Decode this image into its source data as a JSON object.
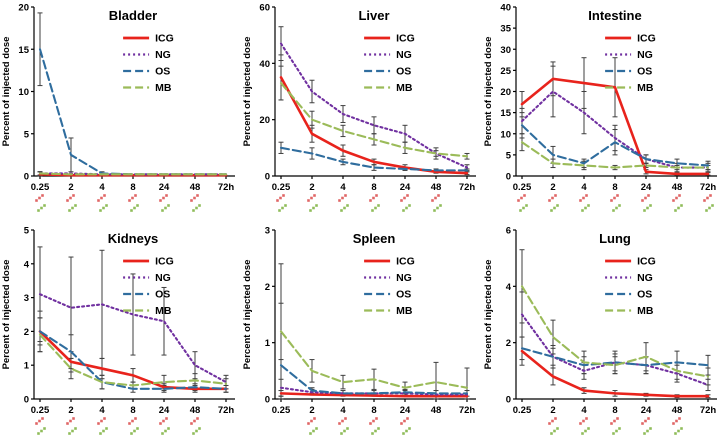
{
  "colors": {
    "icg": "#e8231c",
    "ng": "#7030a0",
    "os": "#2f6d9e",
    "mb": "#9bbb59",
    "error_bar": "#3f3f3f",
    "axis": "#000000",
    "mark_red": "#e06666",
    "mark_green": "#8fbc5a"
  },
  "chart_data": [
    {
      "type": "line",
      "title": "Bladder",
      "ylabel": "Percent of injected dose",
      "ylim": [
        0,
        20
      ],
      "yticks": [
        0,
        5,
        10,
        15,
        20
      ],
      "categories": [
        "0.25",
        "2",
        "4",
        "8",
        "24",
        "48",
        "72h"
      ],
      "legend_position": "upper-right-inside",
      "grid": false,
      "sig_marks": [
        0,
        1,
        2,
        3,
        4,
        5
      ],
      "series": [
        {
          "name": "ICG",
          "key": "icg",
          "dash": "solid",
          "values": [
            0.2,
            0.1,
            0.1,
            0.1,
            0.1,
            0.1,
            0.1
          ],
          "errors": [
            0.3,
            0,
            0,
            0,
            0,
            0,
            0
          ]
        },
        {
          "name": "NG",
          "key": "ng",
          "dash": "dotted",
          "values": [
            0.3,
            0.3,
            0.2,
            0.2,
            0.2,
            0.2,
            0.2
          ],
          "errors": [
            0.2,
            0,
            0,
            0,
            0,
            0,
            0
          ]
        },
        {
          "name": "OS",
          "key": "os",
          "dash": "dashed",
          "values": [
            15,
            2.5,
            0.3,
            0.2,
            0.2,
            0.2,
            0.2
          ],
          "errors": [
            4.3,
            2.0,
            0.2,
            0,
            0,
            0,
            0
          ]
        },
        {
          "name": "MB",
          "key": "mb",
          "dash": "dashed",
          "values": [
            0.3,
            0.2,
            0.2,
            0.2,
            0.2,
            0.2,
            0.2
          ],
          "errors": [
            0.2,
            0,
            0,
            0,
            0,
            0,
            0
          ]
        }
      ]
    },
    {
      "type": "line",
      "title": "Liver",
      "ylabel": "Percent of injected dose",
      "ylim": [
        0,
        60
      ],
      "yticks": [
        0,
        20,
        40,
        60
      ],
      "categories": [
        "0.25",
        "2",
        "4",
        "8",
        "24",
        "48",
        "72h"
      ],
      "legend_position": "upper-right-inside",
      "grid": false,
      "sig_marks": [
        0,
        1,
        2,
        3,
        4,
        5
      ],
      "series": [
        {
          "name": "ICG",
          "key": "icg",
          "dash": "solid",
          "values": [
            35,
            15,
            9,
            5,
            3,
            1.5,
            1
          ],
          "errors": [
            8,
            3,
            2,
            1,
            1,
            0.5,
            0.5
          ]
        },
        {
          "name": "NG",
          "key": "ng",
          "dash": "dotted",
          "values": [
            47,
            30,
            22,
            18,
            15,
            8,
            3
          ],
          "errors": [
            6,
            4,
            3,
            3,
            3,
            2,
            1
          ]
        },
        {
          "name": "OS",
          "key": "os",
          "dash": "dashed",
          "values": [
            10,
            8,
            5,
            3,
            2.5,
            2,
            2
          ],
          "errors": [
            2,
            2,
            1,
            1,
            0.5,
            0.5,
            0.5
          ]
        },
        {
          "name": "MB",
          "key": "mb",
          "dash": "dashed",
          "values": [
            33,
            20,
            16,
            13,
            10,
            8,
            7
          ],
          "errors": [
            6,
            3,
            2,
            2,
            2,
            1,
            1
          ]
        }
      ]
    },
    {
      "type": "line",
      "title": "Intestine",
      "ylabel": "Percent of injected dose",
      "ylim": [
        0,
        40
      ],
      "yticks": [
        0,
        5,
        10,
        15,
        20,
        25,
        30,
        35,
        40
      ],
      "categories": [
        "0.25",
        "2",
        "4",
        "8",
        "24",
        "48",
        "72h"
      ],
      "legend_position": "upper-right-inside",
      "grid": false,
      "sig_marks": [
        0,
        1,
        2,
        3,
        4,
        5,
        6
      ],
      "series": [
        {
          "name": "ICG",
          "key": "icg",
          "dash": "solid",
          "values": [
            17,
            23,
            22,
            21,
            1,
            0.5,
            0.5
          ],
          "errors": [
            3,
            4,
            6,
            7,
            0.5,
            0.3,
            0.3
          ]
        },
        {
          "name": "NG",
          "key": "ng",
          "dash": "dotted",
          "values": [
            13,
            20,
            15,
            9,
            4,
            2,
            2
          ],
          "errors": [
            3,
            6,
            5,
            3,
            1,
            1,
            1
          ]
        },
        {
          "name": "OS",
          "key": "os",
          "dash": "dashed",
          "values": [
            12,
            5,
            3,
            8,
            4,
            3,
            2.5
          ],
          "errors": [
            3,
            2,
            1,
            3,
            1,
            1,
            1
          ]
        },
        {
          "name": "MB",
          "key": "mb",
          "dash": "dashed",
          "values": [
            8,
            3,
            2.5,
            2,
            2.5,
            2,
            2
          ],
          "errors": [
            2,
            1,
            1,
            0.5,
            0.5,
            0.5,
            0.5
          ]
        }
      ]
    },
    {
      "type": "line",
      "title": "Kidneys",
      "ylabel": "Percent of injected dose",
      "ylim": [
        0,
        5
      ],
      "yticks": [
        0,
        1,
        2,
        3,
        4,
        5
      ],
      "categories": [
        "0.25",
        "2",
        "4",
        "8",
        "24",
        "48",
        "72h"
      ],
      "legend_position": "upper-right-inside",
      "grid": false,
      "sig_marks": [
        0,
        1,
        2,
        3,
        4,
        5
      ],
      "series": [
        {
          "name": "ICG",
          "key": "icg",
          "dash": "solid",
          "values": [
            2.0,
            1.1,
            0.9,
            0.7,
            0.35,
            0.3,
            0.3
          ],
          "errors": [
            0.4,
            0.3,
            0.3,
            0.2,
            0.1,
            0.1,
            0.1
          ]
        },
        {
          "name": "NG",
          "key": "ng",
          "dash": "dotted",
          "values": [
            3.1,
            2.7,
            2.8,
            2.5,
            2.3,
            1.0,
            0.5
          ],
          "errors": [
            1.4,
            1.5,
            1.6,
            1.2,
            1.0,
            0.4,
            0.2
          ]
        },
        {
          "name": "OS",
          "key": "os",
          "dash": "dashed",
          "values": [
            2.0,
            1.4,
            0.5,
            0.3,
            0.3,
            0.35,
            0.3
          ],
          "errors": [
            0.6,
            0.5,
            0.2,
            0.1,
            0.1,
            0.1,
            0.1
          ]
        },
        {
          "name": "MB",
          "key": "mb",
          "dash": "dashed",
          "values": [
            1.9,
            0.9,
            0.5,
            0.4,
            0.5,
            0.55,
            0.45
          ],
          "errors": [
            0.5,
            0.3,
            0.2,
            0.1,
            0.2,
            0.2,
            0.15
          ]
        }
      ]
    },
    {
      "type": "line",
      "title": "Spleen",
      "ylabel": "Percent of injected dose",
      "ylim": [
        0,
        3
      ],
      "yticks": [
        0,
        1,
        2,
        3
      ],
      "categories": [
        "0.25",
        "2",
        "4",
        "8",
        "24",
        "48",
        "72h"
      ],
      "legend_position": "upper-right-inside",
      "grid": false,
      "sig_marks": [
        1,
        2,
        3,
        4
      ],
      "series": [
        {
          "name": "ICG",
          "key": "icg",
          "dash": "solid",
          "values": [
            0.1,
            0.08,
            0.07,
            0.06,
            0.05,
            0.05,
            0.05
          ],
          "errors": [
            0.05,
            0,
            0,
            0,
            0,
            0,
            0
          ]
        },
        {
          "name": "NG",
          "key": "ng",
          "dash": "dotted",
          "values": [
            0.2,
            0.12,
            0.1,
            0.1,
            0.1,
            0.08,
            0.08
          ],
          "errors": [
            0.15,
            0.05,
            0,
            0,
            0.05,
            0,
            0
          ]
        },
        {
          "name": "OS",
          "key": "os",
          "dash": "dashed",
          "values": [
            0.6,
            0.15,
            0.1,
            0.1,
            0.12,
            0.1,
            0.1
          ],
          "errors": [
            1.8,
            0.05,
            0.05,
            0.05,
            0.05,
            0.05,
            0.05
          ]
        },
        {
          "name": "MB",
          "key": "mb",
          "dash": "dashed",
          "values": [
            1.2,
            0.5,
            0.3,
            0.35,
            0.2,
            0.3,
            0.2
          ],
          "errors": [
            0.5,
            0.2,
            0.12,
            0.18,
            0.1,
            0.35,
            0.35
          ]
        }
      ]
    },
    {
      "type": "line",
      "title": "Lung",
      "ylabel": "Percent of injected dose",
      "ylim": [
        0,
        6
      ],
      "yticks": [
        0,
        2,
        4,
        6
      ],
      "categories": [
        "0.25",
        "2",
        "4",
        "8",
        "24",
        "48",
        "72h"
      ],
      "legend_position": "upper-right-inside",
      "grid": false,
      "sig_marks": [
        1,
        2,
        3,
        4,
        5
      ],
      "series": [
        {
          "name": "ICG",
          "key": "icg",
          "dash": "solid",
          "values": [
            1.7,
            0.8,
            0.3,
            0.2,
            0.15,
            0.1,
            0.1
          ],
          "errors": [
            0.5,
            0.3,
            0.1,
            0.1,
            0.05,
            0.05,
            0.05
          ]
        },
        {
          "name": "NG",
          "key": "ng",
          "dash": "dotted",
          "values": [
            3.0,
            1.5,
            1.0,
            1.3,
            1.2,
            0.9,
            0.5
          ],
          "errors": [
            0.8,
            0.4,
            0.3,
            0.4,
            0.3,
            0.3,
            0.2
          ]
        },
        {
          "name": "OS",
          "key": "os",
          "dash": "dashed",
          "values": [
            1.8,
            1.5,
            1.2,
            1.3,
            1.2,
            1.3,
            1.2
          ],
          "errors": [
            0.4,
            0.3,
            0.3,
            0.3,
            0.3,
            0.4,
            0.35
          ]
        },
        {
          "name": "MB",
          "key": "mb",
          "dash": "dashed",
          "values": [
            4.0,
            2.2,
            1.3,
            1.2,
            1.5,
            1.0,
            0.8
          ],
          "errors": [
            1.3,
            0.6,
            0.4,
            0.3,
            0.5,
            0.3,
            0.3
          ]
        }
      ]
    }
  ]
}
